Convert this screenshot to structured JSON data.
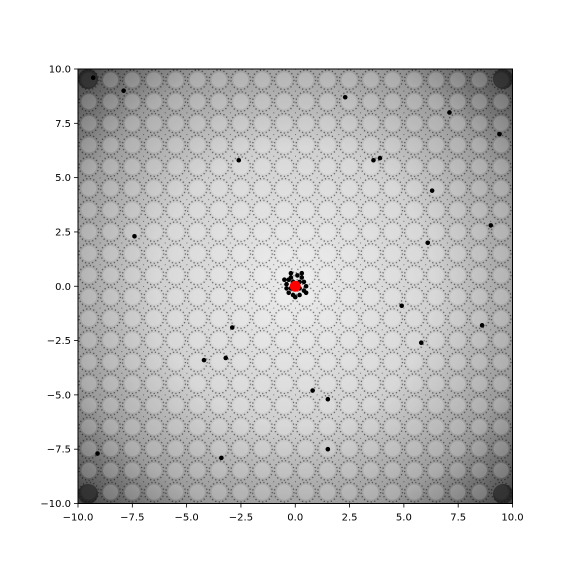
{
  "chart_data": {
    "type": "scatter",
    "title": "",
    "xlabel": "",
    "ylabel": "",
    "xlim": [
      -10,
      10
    ],
    "ylim": [
      -10,
      10
    ],
    "grid": false,
    "background": "grayscale heatmap, bright at center, dark at corners, with a periodic bumpy texture",
    "x_ticks": [
      -10,
      -7.5,
      -5,
      -2.5,
      0,
      2.5,
      5,
      7.5,
      10
    ],
    "x_tick_labels": [
      "−10.0",
      "−7.5",
      "−5.0",
      "−2.5",
      "0.0",
      "2.5",
      "5.0",
      "7.5",
      "10.0"
    ],
    "y_ticks": [
      -10,
      -7.5,
      -5,
      -2.5,
      0,
      2.5,
      5,
      7.5,
      10
    ],
    "y_tick_labels": [
      "−10.0",
      "−7.5",
      "−5.0",
      "−2.5",
      "0.0",
      "2.5",
      "5.0",
      "7.5",
      "10.0"
    ],
    "series": [
      {
        "color": "#000000",
        "marker": "dot",
        "points": [
          [
            -7.9,
            9.0
          ],
          [
            2.3,
            8.7
          ],
          [
            7.1,
            8.0
          ],
          [
            9.4,
            7.0
          ],
          [
            -2.6,
            5.8
          ],
          [
            3.6,
            5.8
          ],
          [
            3.9,
            5.9
          ],
          [
            6.3,
            4.4
          ],
          [
            -7.4,
            2.3
          ],
          [
            6.1,
            2.0
          ],
          [
            9.0,
            2.8
          ],
          [
            4.9,
            -0.9
          ],
          [
            8.6,
            -1.8
          ],
          [
            -2.9,
            -1.9
          ],
          [
            5.8,
            -2.6
          ],
          [
            -4.2,
            -3.4
          ],
          [
            -3.2,
            -3.3
          ],
          [
            0.8,
            -4.8
          ],
          [
            1.5,
            -5.2
          ],
          [
            1.5,
            -7.5
          ],
          [
            -3.4,
            -7.9
          ],
          [
            -9.1,
            -7.7
          ],
          [
            -9.3,
            9.6
          ],
          [
            -0.3,
            0.3
          ],
          [
            -0.2,
            0.4
          ],
          [
            0.1,
            0.5
          ],
          [
            0.3,
            0.4
          ],
          [
            0.4,
            0.2
          ],
          [
            0.5,
            0.0
          ],
          [
            0.4,
            -0.2
          ],
          [
            0.2,
            -0.4
          ],
          [
            -0.1,
            -0.4
          ],
          [
            -0.3,
            -0.3
          ],
          [
            -0.4,
            -0.1
          ],
          [
            -0.4,
            0.1
          ],
          [
            -0.1,
            0.2
          ],
          [
            0.2,
            0.2
          ],
          [
            0.2,
            -0.1
          ],
          [
            -0.2,
            -0.1
          ],
          [
            0.5,
            -0.3
          ],
          [
            -0.5,
            0.3
          ],
          [
            0.0,
            -0.5
          ],
          [
            0.3,
            0.6
          ],
          [
            -0.2,
            0.6
          ]
        ]
      },
      {
        "color": "#ff0000",
        "marker": "dot",
        "points": [
          [
            0.0,
            0.0
          ]
        ]
      }
    ]
  }
}
